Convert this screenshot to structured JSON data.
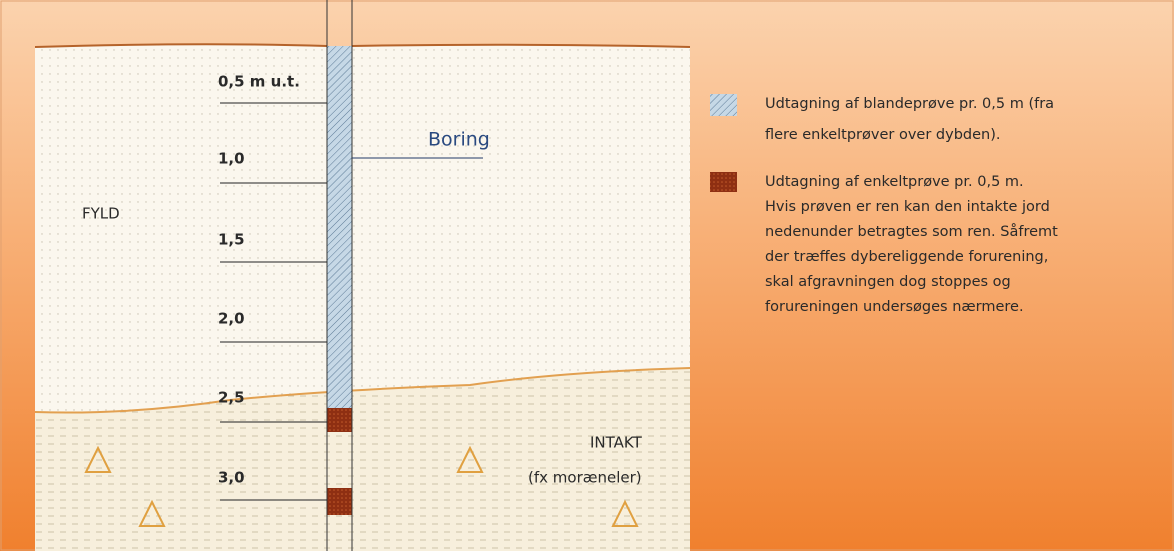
{
  "diagram": {
    "depth_labels": [
      "0,5 m u.t.",
      "1,0",
      "1,5",
      "2,0",
      "2,5",
      "3,0"
    ],
    "boring_label": "Boring",
    "fill_label": "FYLD",
    "intact_label": "INTAKT",
    "intact_note": "(fx moræneler)",
    "legend": [
      {
        "lines": [
          "Udtagning af blandeprøve pr. 0,5 m (fra",
          "flere enkeltprøver over dybden)."
        ]
      },
      {
        "lines": [
          "Udtagning af enkeltprøve pr. 0,5 m.",
          "Hvis prøven er ren kan den intakte jord",
          "nedenunder betragtes som ren. Såfremt",
          "der træffes dybereliggende forurening,",
          "skal afgravningen dog stoppes og",
          "forureningen undersøges nærmere."
        ]
      }
    ]
  }
}
